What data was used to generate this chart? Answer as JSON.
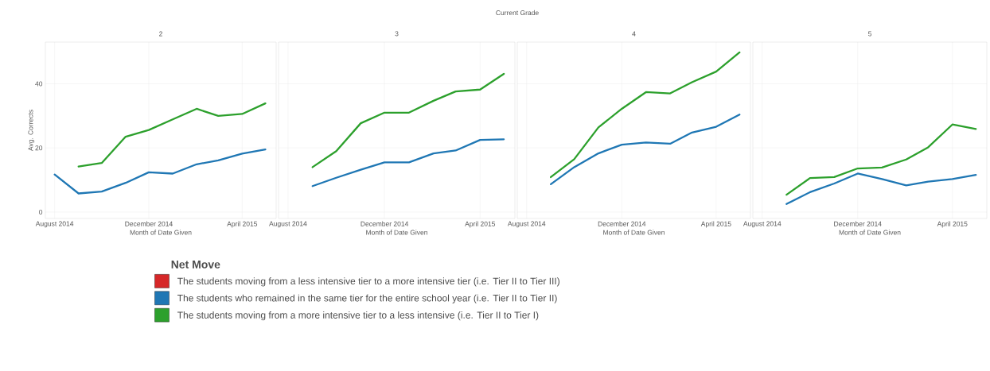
{
  "chart_data": [
    {
      "type": "line",
      "title": "2",
      "xlabel": "Month of Date Given",
      "ylabel": "Avg. Corrects",
      "annotations": [
        "Current Grade"
      ],
      "x": [
        "2014-08",
        "2014-09",
        "2014-10",
        "2014-11",
        "2014-12",
        "2015-01",
        "2015-02",
        "2015-03",
        "2015-04",
        "2015-05"
      ],
      "xlim": [
        "2014-07-20",
        "2015-05-15"
      ],
      "xticks": [
        {
          "value": "2014-08",
          "label": "August 2014"
        },
        {
          "value": "2014-12",
          "label": "December 2014"
        },
        {
          "value": "2015-04",
          "label": "April 2015"
        }
      ],
      "ylim": [
        -2,
        53
      ],
      "yticks": [
        0,
        20,
        40
      ],
      "grid": true,
      "legend": "bottom",
      "legend_title": "Net Move",
      "series": [
        {
          "name": "The students moving from a less intensive tier to a more intensive tier (i.e. Tier II to Tier III)",
          "color": "#d62728",
          "values": [
            null,
            null,
            null,
            null,
            null,
            null,
            null,
            null,
            null,
            null
          ]
        },
        {
          "name": "The students who remained in the same tier for the entire school year (i.e. Tier II to Tier II)",
          "color": "#1f77b4",
          "values": [
            11.7,
            5.8,
            6.4,
            9.1,
            12.4,
            12.0,
            14.9,
            16.1,
            18.2,
            19.5
          ]
        },
        {
          "name": "The students moving from a more intensive tier to a less intensive (i.e. Tier II to Tier I)",
          "color": "#2ca02c",
          "values": [
            null,
            14.2,
            15.3,
            23.5,
            25.6,
            28.9,
            32.2,
            30.0,
            30.6,
            33.9
          ]
        }
      ]
    },
    {
      "type": "line",
      "title": "3",
      "xlabel": "Month of Date Given",
      "tick_labels": "x",
      "x": [
        "2014-09",
        "2014-10",
        "2014-11",
        "2014-12",
        "2015-01",
        "2015-02",
        "2015-03",
        "2015-04",
        "2015-05"
      ],
      "xlim": [
        "2014-07-20",
        "2015-05-15"
      ],
      "xticks": [
        {
          "value": "2014-08",
          "label": "August 2014"
        },
        {
          "value": "2014-12",
          "label": "December 2014"
        },
        {
          "value": "2015-04",
          "label": "April 2015"
        }
      ],
      "ylim": [
        -2,
        53
      ],
      "yticks": [
        0,
        20,
        40
      ],
      "grid": true,
      "series": [
        {
          "color": "#1f77b4",
          "values": [
            8.1,
            10.7,
            13.2,
            15.5,
            15.5,
            18.3,
            19.2,
            22.5,
            22.7
          ]
        },
        {
          "color": "#2ca02c",
          "values": [
            14.0,
            19.0,
            27.7,
            31.0,
            31.0,
            34.7,
            37.6,
            38.2,
            43.1
          ]
        }
      ]
    },
    {
      "type": "line",
      "title": "4",
      "xlabel": "Month of Date Given",
      "tick_labels": "x",
      "x": [
        "2014-09",
        "2014-10",
        "2014-11",
        "2014-12",
        "2015-01",
        "2015-02",
        "2015-03",
        "2015-04",
        "2015-05"
      ],
      "xlim": [
        "2014-07-20",
        "2015-05-15"
      ],
      "xticks": [
        {
          "value": "2014-08",
          "label": "August 2014"
        },
        {
          "value": "2014-12",
          "label": "December 2014"
        },
        {
          "value": "2015-04",
          "label": "April 2015"
        }
      ],
      "ylim": [
        -2,
        53
      ],
      "yticks": [
        0,
        20,
        40
      ],
      "grid": true,
      "series": [
        {
          "color": "#1f77b4",
          "values": [
            8.7,
            14.0,
            18.3,
            21.0,
            21.7,
            21.3,
            24.8,
            26.6,
            30.4
          ]
        },
        {
          "color": "#2ca02c",
          "values": [
            10.9,
            16.5,
            26.4,
            32.2,
            37.4,
            37.0,
            40.5,
            43.8,
            49.8
          ]
        }
      ]
    },
    {
      "type": "line",
      "title": "5",
      "xlabel": "Month of Date Given",
      "tick_labels": "x",
      "x": [
        "2014-09",
        "2014-10",
        "2014-11",
        "2014-12",
        "2015-01",
        "2015-02",
        "2015-03",
        "2015-04",
        "2015-05"
      ],
      "xlim": [
        "2014-07-20",
        "2015-05-15"
      ],
      "xticks": [
        {
          "value": "2014-08",
          "label": "August 2014"
        },
        {
          "value": "2014-12",
          "label": "December 2014"
        },
        {
          "value": "2015-04",
          "label": "April 2015"
        }
      ],
      "ylim": [
        -2,
        53
      ],
      "yticks": [
        0,
        20,
        40
      ],
      "grid": true,
      "series": [
        {
          "color": "#1f77b4",
          "values": [
            2.5,
            6.2,
            8.9,
            12.0,
            10.3,
            8.3,
            9.5,
            10.3,
            11.6
          ]
        },
        {
          "color": "#2ca02c",
          "values": [
            5.4,
            10.6,
            10.9,
            13.6,
            13.9,
            16.4,
            20.2,
            27.3,
            25.9
          ]
        }
      ]
    }
  ]
}
